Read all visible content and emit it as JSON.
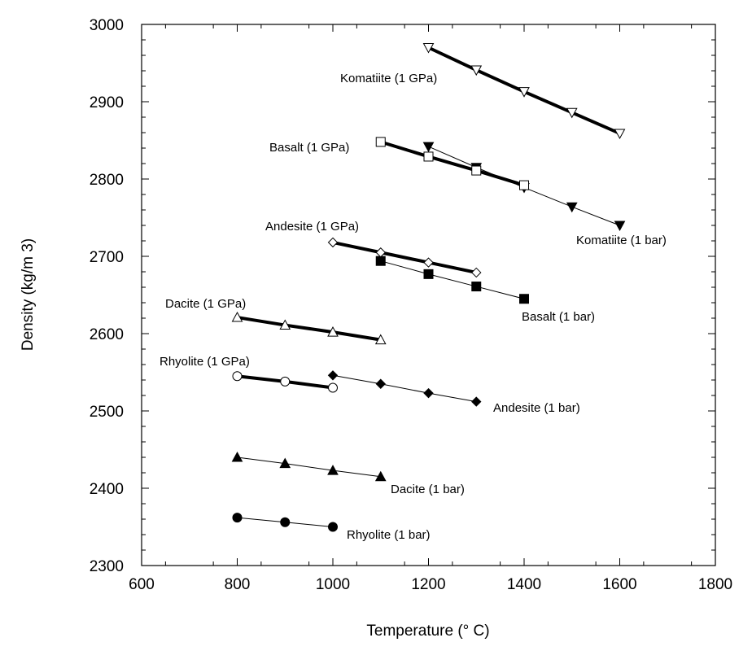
{
  "chart_data": {
    "type": "line",
    "xlabel": "Temperature (° C)",
    "ylabel": "Density (kg/m 3)",
    "xlim": [
      600,
      1800
    ],
    "ylim": [
      2300,
      3000
    ],
    "x_ticks": [
      "600",
      "800",
      "1000",
      "1200",
      "1400",
      "1600",
      "1800"
    ],
    "y_ticks": [
      "2300",
      "2400",
      "2500",
      "2600",
      "2700",
      "2800",
      "2900",
      "3000"
    ],
    "grid": false,
    "legend": "none",
    "series": [
      {
        "name": "Komatiite (1 GPa)",
        "marker": "triangle-down",
        "filled": false,
        "line": "thick",
        "x": [
          1200,
          1300,
          1400,
          1500,
          1600
        ],
        "y": [
          2970,
          2941,
          2913,
          2886,
          2859
        ]
      },
      {
        "name": "Komatiite (1 bar)",
        "marker": "triangle-down",
        "filled": true,
        "line": "thin",
        "x": [
          1200,
          1300,
          1400,
          1500,
          1600
        ],
        "y": [
          2842,
          2815,
          2789,
          2764,
          2740
        ]
      },
      {
        "name": "Basalt (1 GPa)",
        "marker": "square",
        "filled": false,
        "line": "thick",
        "x": [
          1100,
          1200,
          1300,
          1400
        ],
        "y": [
          2848,
          2829,
          2811,
          2792
        ]
      },
      {
        "name": "Basalt (1 bar)",
        "marker": "square",
        "filled": true,
        "line": "thin",
        "x": [
          1100,
          1200,
          1300,
          1400
        ],
        "y": [
          2694,
          2677,
          2661,
          2645
        ]
      },
      {
        "name": "Andesite (1 GPa)",
        "marker": "diamond",
        "filled": false,
        "line": "thick",
        "x": [
          1000,
          1100,
          1200,
          1300
        ],
        "y": [
          2718,
          2705,
          2692,
          2679
        ]
      },
      {
        "name": "Andesite (1 bar)",
        "marker": "diamond",
        "filled": true,
        "line": "thin",
        "x": [
          1000,
          1100,
          1200,
          1300
        ],
        "y": [
          2546,
          2535,
          2523,
          2512
        ]
      },
      {
        "name": "Dacite (1 GPa)",
        "marker": "triangle-up",
        "filled": false,
        "line": "thick",
        "x": [
          800,
          900,
          1000,
          1100
        ],
        "y": [
          2621,
          2611,
          2602,
          2592
        ]
      },
      {
        "name": "Dacite (1 bar)",
        "marker": "triangle-up",
        "filled": true,
        "line": "thin",
        "x": [
          800,
          900,
          1000,
          1100
        ],
        "y": [
          2440,
          2432,
          2423,
          2415
        ]
      },
      {
        "name": "Rhyolite (1 GPa)",
        "marker": "circle",
        "filled": false,
        "line": "thick",
        "x": [
          800,
          900,
          1000
        ],
        "y": [
          2545,
          2538,
          2530
        ]
      },
      {
        "name": "Rhyolite  (1 bar)",
        "marker": "circle",
        "filled": true,
        "line": "thin",
        "x": [
          800,
          900,
          1000
        ],
        "y": [
          2362,
          2356,
          2350
        ]
      }
    ]
  }
}
